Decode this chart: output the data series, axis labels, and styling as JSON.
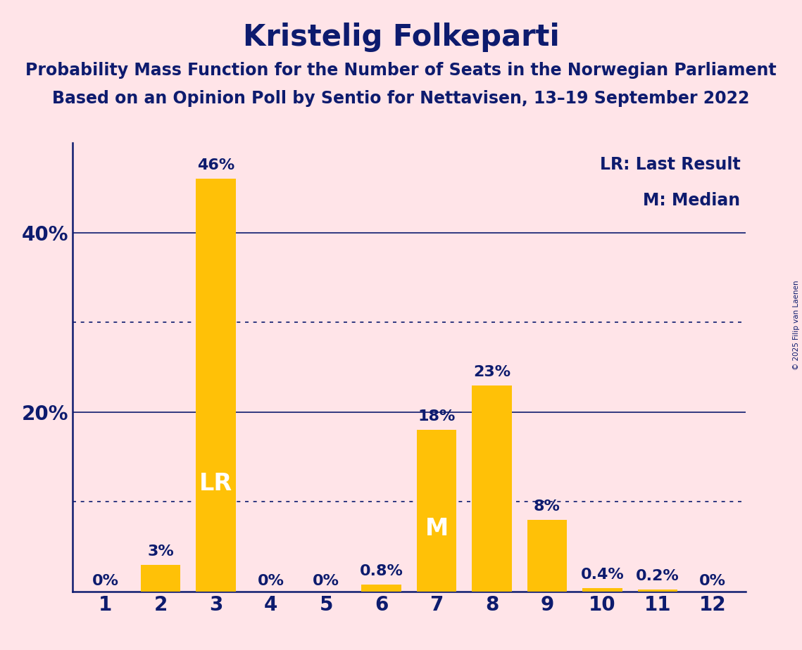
{
  "title": "Kristelig Folkeparti",
  "subtitle1": "Probability Mass Function for the Number of Seats in the Norwegian Parliament",
  "subtitle2": "Based on an Opinion Poll by Sentio for Nettavisen, 13–19 September 2022",
  "copyright": "© 2025 Filip van Laenen",
  "seats": [
    1,
    2,
    3,
    4,
    5,
    6,
    7,
    8,
    9,
    10,
    11,
    12
  ],
  "values": [
    0.0,
    3.0,
    46.0,
    0.0,
    0.0,
    0.8,
    18.0,
    23.0,
    8.0,
    0.4,
    0.2,
    0.0
  ],
  "labels": [
    "0%",
    "3%",
    "46%",
    "0%",
    "0%",
    "0.8%",
    "18%",
    "23%",
    "8%",
    "0.4%",
    "0.2%",
    "0%"
  ],
  "bar_color": "#FFC107",
  "background_color": "#FFE4E8",
  "text_color": "#0D1B6E",
  "lr_bar": 3,
  "median_bar": 7,
  "lr_label": "LR",
  "median_label": "M",
  "legend_lr": "LR: Last Result",
  "legend_m": "M: Median",
  "ylim": [
    0,
    50
  ],
  "yticks": [
    20,
    40
  ],
  "solid_lines": [
    20,
    40
  ],
  "dotted_lines": [
    10,
    30
  ],
  "title_fontsize": 30,
  "subtitle_fontsize": 17,
  "label_fontsize": 16,
  "axis_fontsize": 20,
  "legend_fontsize": 17,
  "lr_internal_fontsize": 24,
  "m_internal_fontsize": 24
}
